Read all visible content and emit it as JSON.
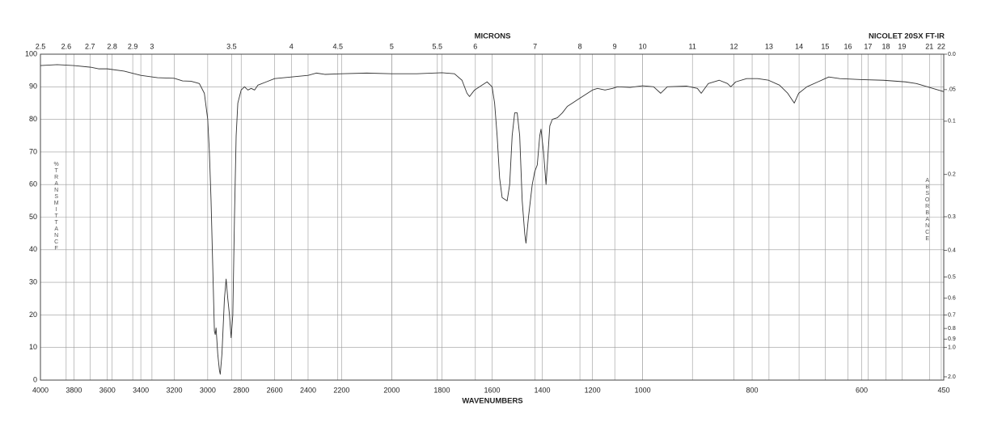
{
  "chart_data": {
    "type": "line",
    "title": "NICOLET 20SX FT-IR",
    "x_label": "WAVENUMBERS",
    "x2_label": "MICRONS",
    "y_label": "%TRANSMITTANCE",
    "y2_label": "ABSORBANCE",
    "color": "#333333",
    "grid": true,
    "xlim": [
      4000,
      450
    ],
    "x_scale_breaks": [
      2200,
      1000
    ],
    "xticks": [
      4000,
      3800,
      3600,
      3400,
      3200,
      3000,
      2800,
      2600,
      2400,
      2200,
      2000,
      1800,
      1600,
      1400,
      1200,
      1000,
      800,
      600,
      450
    ],
    "x2_scale": "microns",
    "x2ticks": [
      2.5,
      2.6,
      2.7,
      2.8,
      2.9,
      3,
      3.5,
      4,
      4.5,
      5,
      5.5,
      6,
      7,
      8,
      9,
      10,
      11,
      12,
      13,
      14,
      15,
      16,
      17,
      18,
      19,
      21,
      22
    ],
    "ylim": [
      0,
      100
    ],
    "yticks": [
      0,
      10,
      20,
      30,
      40,
      50,
      60,
      70,
      80,
      90,
      100
    ],
    "y2_scale": "absorbance",
    "y2ticks": [
      {
        "value": 0,
        "label": "0.0"
      },
      {
        "value": 0.05,
        "label": ".05"
      },
      0.1,
      0.2,
      0.3,
      0.4,
      0.5,
      0.6,
      0.7,
      0.8,
      0.9,
      {
        "value": 1,
        "label": "1.0"
      },
      {
        "value": 2,
        "label": "2.0"
      }
    ],
    "x": [
      4000,
      3900,
      3800,
      3700,
      3650,
      3600,
      3500,
      3400,
      3300,
      3200,
      3150,
      3100,
      3050,
      3020,
      3000,
      2990,
      2980,
      2970,
      2960,
      2955,
      2950,
      2940,
      2930,
      2925,
      2915,
      2900,
      2890,
      2880,
      2870,
      2860,
      2850,
      2840,
      2830,
      2820,
      2800,
      2780,
      2760,
      2740,
      2720,
      2700,
      2650,
      2600,
      2500,
      2400,
      2350,
      2300,
      2200,
      2100,
      2000,
      1900,
      1800,
      1750,
      1720,
      1700,
      1690,
      1670,
      1640,
      1620,
      1600,
      1590,
      1580,
      1570,
      1560,
      1550,
      1540,
      1530,
      1520,
      1510,
      1500,
      1490,
      1480,
      1470,
      1465,
      1455,
      1440,
      1430,
      1420,
      1410,
      1405,
      1395,
      1385,
      1375,
      1370,
      1360,
      1340,
      1320,
      1300,
      1280,
      1260,
      1240,
      1220,
      1200,
      1180,
      1150,
      1120,
      1100,
      1050,
      1000,
      980,
      967,
      955,
      920,
      900,
      893,
      880,
      860,
      845,
      839,
      830,
      810,
      790,
      770,
      750,
      735,
      723,
      715,
      700,
      680,
      660,
      640,
      600,
      560,
      520,
      500,
      480,
      460,
      450
    ],
    "values": [
      96.5,
      96.8,
      96.5,
      96,
      95.5,
      95.5,
      94.8,
      93.5,
      92.8,
      92.6,
      91.8,
      91.7,
      91,
      88,
      80,
      70,
      55,
      35,
      15,
      14,
      16,
      8,
      3,
      1.8,
      8,
      25,
      31,
      25,
      20,
      13,
      20,
      50,
      75,
      85,
      89,
      90,
      89,
      89.5,
      89,
      90.5,
      91.5,
      92.5,
      93,
      93.5,
      94.2,
      93.8,
      94,
      94.2,
      94,
      94,
      94.3,
      94,
      92,
      88,
      87,
      89,
      90.5,
      91.5,
      90,
      85,
      75,
      62,
      56,
      55.5,
      55,
      60,
      75,
      82,
      82,
      75,
      55,
      45,
      42,
      50,
      60,
      64,
      66,
      75,
      77,
      70,
      60,
      72,
      78,
      80,
      80.5,
      82,
      84,
      85,
      86,
      87,
      88,
      89,
      89.5,
      89,
      89.5,
      90,
      89.8,
      90.3,
      90,
      88,
      90,
      90.2,
      89.5,
      88,
      91,
      92,
      91,
      90,
      91.5,
      92.5,
      92.5,
      92,
      90.5,
      88,
      85,
      88,
      90,
      91.5,
      93,
      92.5,
      92.2,
      92,
      91.5,
      91,
      90,
      89,
      88.5
    ]
  }
}
